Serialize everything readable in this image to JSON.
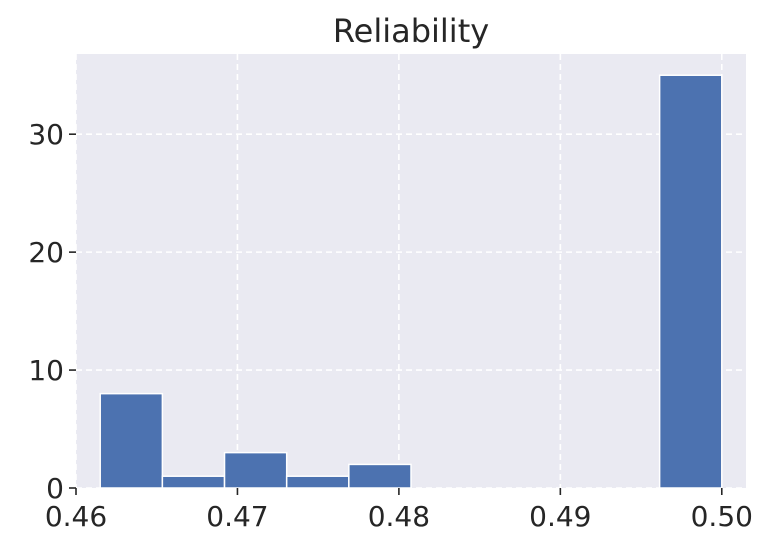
{
  "chart_data": {
    "type": "bar",
    "title": "Reliability",
    "xlabel": "",
    "ylabel": "",
    "xlim": [
      0.46,
      0.5015
    ],
    "ylim": [
      0,
      36.8
    ],
    "xticks": [
      0.46,
      0.47,
      0.48,
      0.49,
      0.5
    ],
    "xtick_labels": [
      "0.46",
      "0.47",
      "0.48",
      "0.49",
      "0.50"
    ],
    "yticks": [
      0,
      10,
      20,
      30
    ],
    "ytick_labels": [
      "0",
      "10",
      "20",
      "30"
    ],
    "grid": true,
    "bins": [
      {
        "x0": 0.4615,
        "x1": 0.46535,
        "count": 8
      },
      {
        "x0": 0.46535,
        "x1": 0.4692,
        "count": 1
      },
      {
        "x0": 0.4692,
        "x1": 0.47305,
        "count": 3
      },
      {
        "x0": 0.47305,
        "x1": 0.4769,
        "count": 1
      },
      {
        "x0": 0.4769,
        "x1": 0.48075,
        "count": 2
      },
      {
        "x0": 0.48075,
        "x1": 0.4846,
        "count": 0
      },
      {
        "x0": 0.4846,
        "x1": 0.48845,
        "count": 0
      },
      {
        "x0": 0.48845,
        "x1": 0.4923,
        "count": 0
      },
      {
        "x0": 0.4923,
        "x1": 0.49615,
        "count": 0
      },
      {
        "x0": 0.49615,
        "x1": 0.5,
        "count": 35
      }
    ],
    "colors": {
      "bar": "#4c72b0",
      "background": "#eaeaf2",
      "grid": "#ffffff",
      "text": "#262626"
    }
  }
}
